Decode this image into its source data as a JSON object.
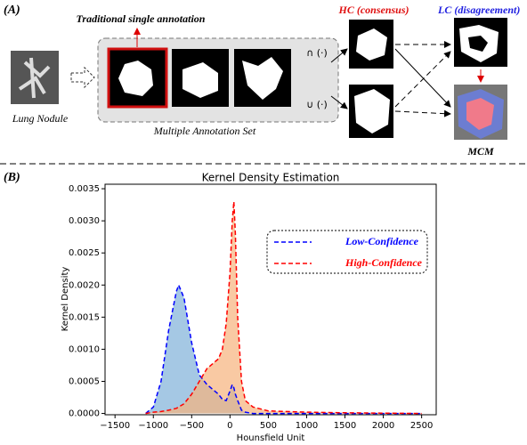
{
  "panel_a": {
    "label": "(A)",
    "traditional": "Traditional single annotation",
    "nodule": "Lung Nodule",
    "annotation_set": "Multiple Annotation Set",
    "intersection": "∩ (·)",
    "union": "∪ (·)",
    "hc": "HC (consensus)",
    "lc": "LC (disagreement)",
    "mcm": "MCM"
  },
  "panel_b_label": "(B)",
  "chart_data": {
    "type": "kde",
    "title": "Kernel Density Estimation",
    "xlabel": "Hounsfield Unit",
    "ylabel": "Kernel Density",
    "x": [
      -1100,
      -1000,
      -900,
      -800,
      -700,
      -670,
      -600,
      -500,
      -400,
      -300,
      -200,
      -150,
      -100,
      -50,
      0,
      30,
      50,
      70,
      100,
      150,
      200,
      300,
      500,
      1000,
      1500,
      2000,
      2500
    ],
    "series": [
      {
        "name": "Low-Confidence",
        "color": "#0000ff",
        "fill": "#7fb0d8",
        "values": [
          0,
          0.0001,
          0.0005,
          0.0013,
          0.0019,
          0.002,
          0.0018,
          0.0011,
          0.0006,
          0.00045,
          0.00035,
          0.0003,
          0.00022,
          0.0002,
          0.00035,
          0.00045,
          0.0004,
          0.0003,
          0.0002,
          5e-05,
          2e-05,
          0,
          0,
          0,
          0,
          0,
          0
        ]
      },
      {
        "name": "High-Confidence",
        "color": "#ff0000",
        "fill": "#f7b27c",
        "values": [
          0,
          2e-05,
          3e-05,
          5e-05,
          8e-05,
          0.0001,
          0.00015,
          0.0003,
          0.0005,
          0.0007,
          0.0008,
          0.00085,
          0.001,
          0.0014,
          0.0022,
          0.003,
          0.0033,
          0.0028,
          0.0015,
          0.0005,
          0.0002,
          0.0001,
          4e-05,
          2e-05,
          1e-05,
          5e-06,
          0
        ]
      }
    ],
    "xlim": [
      -1630,
      2690
    ],
    "ylim": [
      -2e-05,
      0.00357
    ],
    "xticks": [
      {
        "value": -1500,
        "label": "−1500"
      },
      {
        "value": -1000,
        "label": "−1000"
      },
      {
        "value": -500,
        "label": "−500"
      },
      0,
      500,
      1000,
      1500,
      2000,
      2500
    ],
    "yticks": [
      {
        "value": 0,
        "label": "0.0000"
      },
      {
        "value": 0.0005,
        "label": "0.0005"
      },
      {
        "value": 0.001,
        "label": "0.0010"
      },
      {
        "value": 0.0015,
        "label": "0.0015"
      },
      {
        "value": 0.002,
        "label": "0.0020"
      },
      {
        "value": 0.0025,
        "label": "0.0025"
      },
      {
        "value": 0.003,
        "label": "0.0030"
      },
      {
        "value": 0.0035,
        "label": "0.0035"
      }
    ],
    "legend": "upper right"
  }
}
